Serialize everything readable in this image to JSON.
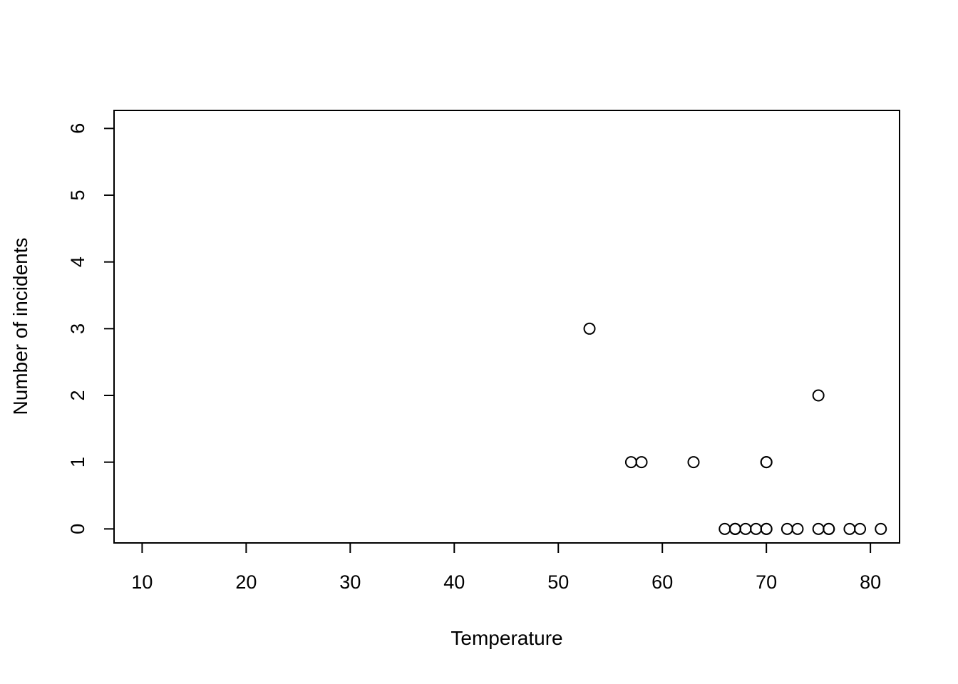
{
  "chart_data": {
    "type": "scatter",
    "title": "",
    "xlabel": "Temperature",
    "ylabel": "Number of incidents",
    "xlim": [
      7.3,
      82.8
    ],
    "ylim": [
      -0.21,
      6.27
    ],
    "x_ticks": [
      10,
      20,
      30,
      40,
      50,
      60,
      70,
      80
    ],
    "y_ticks": [
      0,
      1,
      2,
      3,
      4,
      5,
      6
    ],
    "grid": false,
    "legend": null,
    "marker": "open-circle",
    "colors": {
      "background": "#ffffff",
      "foreground": "#000000"
    },
    "points": [
      [
        66,
        0
      ],
      [
        70,
        1
      ],
      [
        69,
        0
      ],
      [
        68,
        0
      ],
      [
        67,
        0
      ],
      [
        72,
        0
      ],
      [
        73,
        0
      ],
      [
        70,
        0
      ],
      [
        57,
        1
      ],
      [
        63,
        1
      ],
      [
        70,
        1
      ],
      [
        78,
        0
      ],
      [
        67,
        0
      ],
      [
        53,
        3
      ],
      [
        67,
        0
      ],
      [
        75,
        0
      ],
      [
        70,
        0
      ],
      [
        81,
        0
      ],
      [
        76,
        0
      ],
      [
        79,
        0
      ],
      [
        75,
        2
      ],
      [
        76,
        0
      ],
      [
        58,
        1
      ]
    ]
  }
}
